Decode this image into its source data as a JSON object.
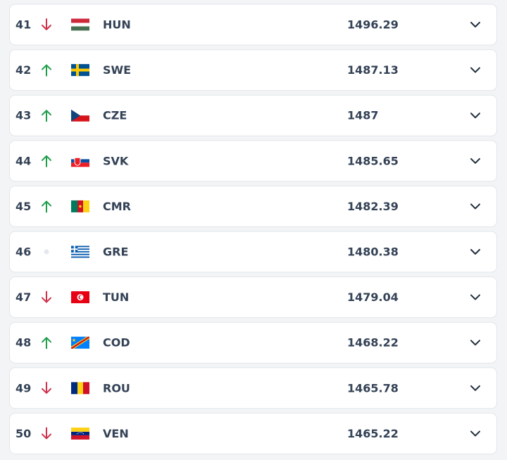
{
  "rows": [
    {
      "rank": 41,
      "code": "HUN",
      "points": 1496.29
    },
    {
      "rank": 42,
      "code": "SWE",
      "points": 1487.13
    },
    {
      "rank": 43,
      "code": "CZE",
      "points": 1487
    },
    {
      "rank": 44,
      "code": "SVK",
      "points": 1485.65
    },
    {
      "rank": 45,
      "code": "CMR",
      "points": 1482.39
    },
    {
      "rank": 46,
      "code": "GRE",
      "points": 1480.38
    },
    {
      "rank": 47,
      "code": "TUN",
      "points": 1479.04
    },
    {
      "rank": 48,
      "code": "COD",
      "points": 1468.22
    },
    {
      "rank": 49,
      "code": "ROU",
      "points": 1465.78
    },
    {
      "rank": 50,
      "code": "VEN",
      "points": 1465.22
    }
  ]
}
